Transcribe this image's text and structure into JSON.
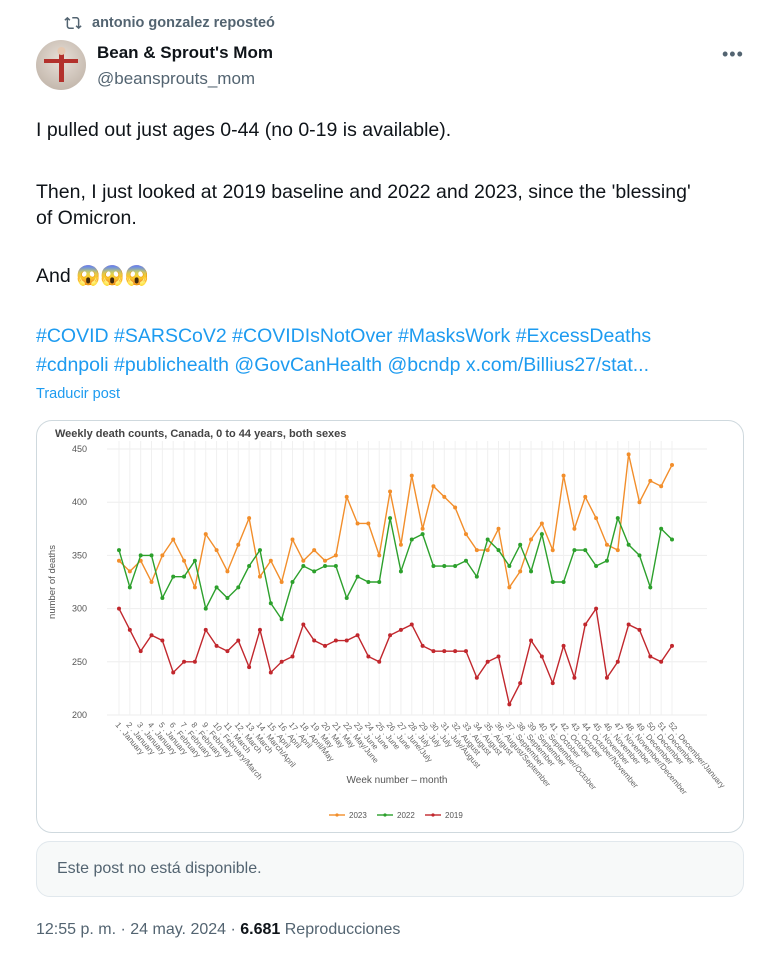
{
  "repost": {
    "icon": "repost-icon",
    "text": "antonio gonzalez reposteó"
  },
  "author": {
    "name": "Bean & Sprout's Mom",
    "handle": "@beansprouts_mom",
    "more_icon": "more-icon"
  },
  "post": {
    "line1": "I pulled out just ages 0-44 (no 0-19 is available).",
    "line2": "Then, I just looked at 2019 baseline and 2022 and 2023, since the 'blessing'",
    "line3": "of Omicron.",
    "line4": "And 😱😱😱",
    "hashtags_line1": "#COVID #SARSCoV2 #COVIDIsNotOver #MasksWork #ExcessDeaths",
    "hashtags_line2": "#cdnpoli #publichealth @GovCanHealth @bcndp  x.com/Billius27/stat...",
    "translate": "Traducir post"
  },
  "unavailable": "Este post no está disponible.",
  "footer": {
    "time": "12:55 p. m. · 24 may. 2024 · ",
    "views": "6.681",
    "views_label": " Reproducciones"
  },
  "chart_data": {
    "type": "line",
    "title": "Weekly death counts, Canada, 0 to 44 years, both sexes",
    "xlabel": "Week number – month",
    "ylabel": "number of deaths",
    "ylim": [
      200,
      450
    ],
    "yticks": [
      200,
      250,
      300,
      350,
      400,
      450
    ],
    "grid": true,
    "legend": "bottom",
    "categories": [
      "1 . January",
      "2 . January",
      "3 . January",
      "4 . January",
      "5 . January",
      "6 . February",
      "7 . February",
      "8 . February",
      "9 . February",
      "10 . February/March",
      "11 . March",
      "12 . March",
      "13 . March",
      "14 . March/April",
      "15 . April",
      "16 . April",
      "17 . April",
      "18 . April/May",
      "19 . May",
      "20 . May",
      "21 . May",
      "22 . May/June",
      "23 . June",
      "24 . June",
      "25 . June",
      "26 . June",
      "27 . June/July",
      "28 . July",
      "29 . July",
      "30 . July",
      "31 . July/August",
      "32 . August",
      "33 . August",
      "34 . August",
      "35 . August",
      "36 . August/September",
      "37 . September",
      "38 . September",
      "39 . September",
      "40 . September/October",
      "41 . October",
      "42 . October",
      "43 . October",
      "44 . October/November",
      "45 . November",
      "46 . November",
      "47 . November",
      "48 . November/December",
      "49 . December",
      "50 . December",
      "51 . December",
      "52 . December/January"
    ],
    "series": [
      {
        "name": "2023",
        "color": "#f28e2b",
        "values": [
          345,
          335,
          345,
          325,
          350,
          365,
          345,
          320,
          370,
          355,
          335,
          360,
          385,
          330,
          345,
          325,
          365,
          345,
          355,
          345,
          350,
          405,
          380,
          380,
          350,
          410,
          360,
          425,
          375,
          415,
          405,
          395,
          370,
          355,
          355,
          375,
          320,
          335,
          365,
          380,
          355,
          425,
          375,
          405,
          385,
          360,
          355,
          445,
          400,
          420,
          415,
          435
        ]
      },
      {
        "name": "2022",
        "color": "#2ca02c",
        "values": [
          355,
          320,
          350,
          350,
          310,
          330,
          330,
          345,
          300,
          320,
          310,
          320,
          340,
          355,
          305,
          290,
          325,
          340,
          335,
          340,
          340,
          310,
          330,
          325,
          325,
          385,
          335,
          365,
          370,
          340,
          340,
          340,
          345,
          330,
          365,
          355,
          340,
          360,
          335,
          370,
          325,
          325,
          355,
          355,
          340,
          345,
          385,
          360,
          350,
          320,
          375,
          365
        ]
      },
      {
        "name": "2019",
        "color": "#c1272d",
        "values": [
          300,
          280,
          260,
          275,
          270,
          240,
          250,
          250,
          280,
          265,
          260,
          270,
          245,
          280,
          240,
          250,
          255,
          285,
          270,
          265,
          270,
          270,
          275,
          255,
          250,
          275,
          280,
          285,
          265,
          260,
          260,
          260,
          260,
          235,
          250,
          255,
          210,
          230,
          270,
          255,
          230,
          265,
          235,
          285,
          300,
          235,
          250,
          285,
          280,
          255,
          250,
          265
        ]
      }
    ]
  }
}
